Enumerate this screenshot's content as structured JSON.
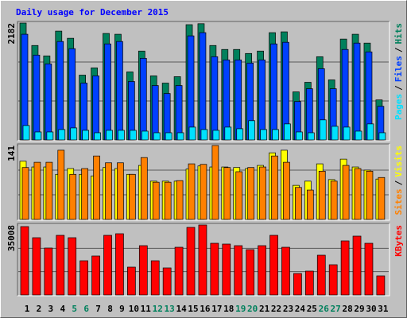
{
  "chart_data": [
    {
      "type": "bar",
      "title": "Daily usage for December 2015",
      "legend_separator": "/",
      "ylim": [
        0,
        2182
      ],
      "yticks": [
        2182
      ],
      "ygrid": [
        727,
        1455
      ],
      "series": [
        {
          "name": "Hits",
          "color": "#00805c",
          "values": [
            2182,
            1763,
            1569,
            2032,
            1898,
            1210,
            1345,
            1988,
            1973,
            1270,
            1659,
            1196,
            1061,
            1181,
            2152,
            2170,
            1763,
            1689,
            1689,
            1614,
            1659,
            2003,
            2018,
            897,
            1076,
            1554,
            1121,
            1883,
            1973,
            1808,
            747
          ]
        },
        {
          "name": "Files",
          "color": "#0040ff",
          "values": [
            1973,
            1584,
            1420,
            1838,
            1704,
            1061,
            1196,
            1793,
            1838,
            1091,
            1524,
            1016,
            867,
            1016,
            1943,
            2003,
            1554,
            1494,
            1494,
            1435,
            1494,
            1793,
            1823,
            717,
            956,
            1330,
            956,
            1689,
            1808,
            1644,
            628
          ]
        },
        {
          "name": "Pages",
          "color": "#00e0ff",
          "values": [
            269,
            149,
            149,
            194,
            224,
            179,
            134,
            179,
            179,
            179,
            164,
            134,
            134,
            134,
            239,
            194,
            179,
            239,
            209,
            359,
            194,
            194,
            299,
            149,
            134,
            374,
            254,
            239,
            164,
            299,
            134
          ]
        }
      ]
    },
    {
      "type": "bar",
      "legend_separator": "/",
      "ylim": [
        0,
        141
      ],
      "yticks": [
        141
      ],
      "ygrid": [
        47,
        94
      ],
      "series": [
        {
          "name": "Visits",
          "color": "#ffff00",
          "values": [
            111,
            100,
            100,
            86,
            97,
            86,
            83,
            99,
            97,
            86,
            103,
            73,
            73,
            73,
            96,
            102,
            100,
            100,
            99,
            97,
            103,
            127,
            132,
            65,
            73,
            106,
            76,
            115,
            100,
            94,
            77
          ]
        },
        {
          "name": "Sites",
          "color": "#ff8000",
          "values": [
            99,
            109,
            109,
            132,
            86,
            97,
            121,
            108,
            108,
            86,
            118,
            71,
            71,
            74,
            106,
            105,
            141,
            99,
            91,
            99,
            100,
            121,
            109,
            61,
            56,
            92,
            73,
            103,
            97,
            92,
            80
          ]
        }
      ]
    },
    {
      "type": "bar",
      "ylim": [
        0,
        35008
      ],
      "yticks": [
        35008
      ],
      "ygrid": [
        11669,
        23339
      ],
      "categories": [
        "1",
        "2",
        "3",
        "4",
        "5",
        "6",
        "7",
        "8",
        "9",
        "10",
        "11",
        "12",
        "13",
        "14",
        "15",
        "16",
        "17",
        "18",
        "19",
        "20",
        "21",
        "22",
        "23",
        "24",
        "25",
        "26",
        "27",
        "28",
        "29",
        "30",
        "31"
      ],
      "category_colors": [
        "#000000",
        "#000000",
        "#000000",
        "#000000",
        "#00805c",
        "#00805c",
        "#000000",
        "#000000",
        "#000000",
        "#000000",
        "#000000",
        "#00805c",
        "#00805c",
        "#000000",
        "#000000",
        "#000000",
        "#000000",
        "#000000",
        "#00805c",
        "#00805c",
        "#000000",
        "#000000",
        "#000000",
        "#000000",
        "#000000",
        "#00805c",
        "#00805c",
        "#000000",
        "#000000",
        "#000000",
        "#000000"
      ],
      "series": [
        {
          "name": "KBytes",
          "color": "#ff0000",
          "values": [
            34212,
            28643,
            23472,
            29836,
            28643,
            17107,
            19494,
            29836,
            30632,
            13925,
            24665,
            17107,
            13527,
            23870,
            33814,
            35008,
            25859,
            25461,
            24665,
            22676,
            24665,
            29836,
            23870,
            10741,
            11934,
            19892,
            15118,
            27051,
            29439,
            25859,
            9548
          ]
        }
      ]
    }
  ]
}
